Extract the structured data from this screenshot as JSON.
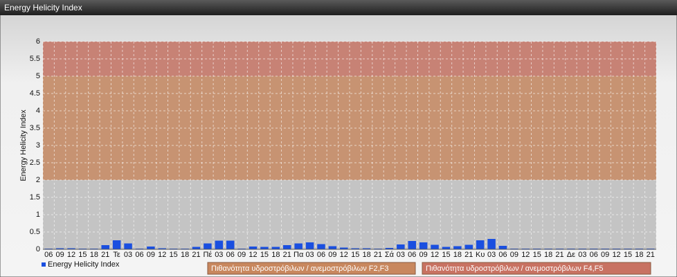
{
  "window_title": "Energy Helicity Index",
  "chart_data": {
    "type": "bar",
    "y_label": "Energy Helicity Index",
    "categories": [
      "06",
      "09",
      "12",
      "15",
      "18",
      "21",
      "Τε",
      "03",
      "06",
      "09",
      "12",
      "15",
      "18",
      "21",
      "Πέ",
      "03",
      "06",
      "09",
      "12",
      "15",
      "18",
      "21",
      "Πα",
      "03",
      "06",
      "09",
      "12",
      "15",
      "18",
      "21",
      "Σά",
      "03",
      "06",
      "09",
      "12",
      "15",
      "18",
      "21",
      "Κυ",
      "03",
      "06",
      "09",
      "12",
      "15",
      "18",
      "21",
      "Δε",
      "03",
      "06",
      "09",
      "12",
      "15",
      "18",
      "21"
    ],
    "series": [
      {
        "name": "Energy Helicity Index",
        "color": "#1a4fe0",
        "values": [
          0.02,
          0.03,
          0.03,
          0.02,
          0.02,
          0.12,
          0.26,
          0.17,
          0.02,
          0.08,
          0.03,
          0.02,
          0.02,
          0.07,
          0.17,
          0.25,
          0.25,
          0.02,
          0.08,
          0.07,
          0.07,
          0.12,
          0.17,
          0.2,
          0.15,
          0.09,
          0.05,
          0.03,
          0.03,
          0.02,
          0.04,
          0.14,
          0.24,
          0.2,
          0.13,
          0.07,
          0.09,
          0.13,
          0.26,
          0.3,
          0.1,
          0.02,
          0.02,
          0.02,
          0.02,
          0.02,
          0.02,
          0.02,
          0.02,
          0.02,
          0.02,
          0.02,
          0.02,
          0.02
        ]
      }
    ],
    "bands": [
      {
        "name": "Πιθανότητα υδροστρόβιλων / ανεμοστρόβιλων F2,F3",
        "from": 2,
        "to": 5,
        "color": "#c8875e"
      },
      {
        "name": "Πιθανότητα υδροστρόβιλων / ανεμοστρόβιλων F4,F5",
        "from": 5,
        "to": 6,
        "color": "#c87262"
      }
    ],
    "ylim": [
      0,
      6
    ],
    "yticks": [
      0,
      0.5,
      1,
      1.5,
      2,
      2.5,
      3,
      3.5,
      4,
      4.5,
      5,
      5.5,
      6
    ],
    "grid": true
  }
}
